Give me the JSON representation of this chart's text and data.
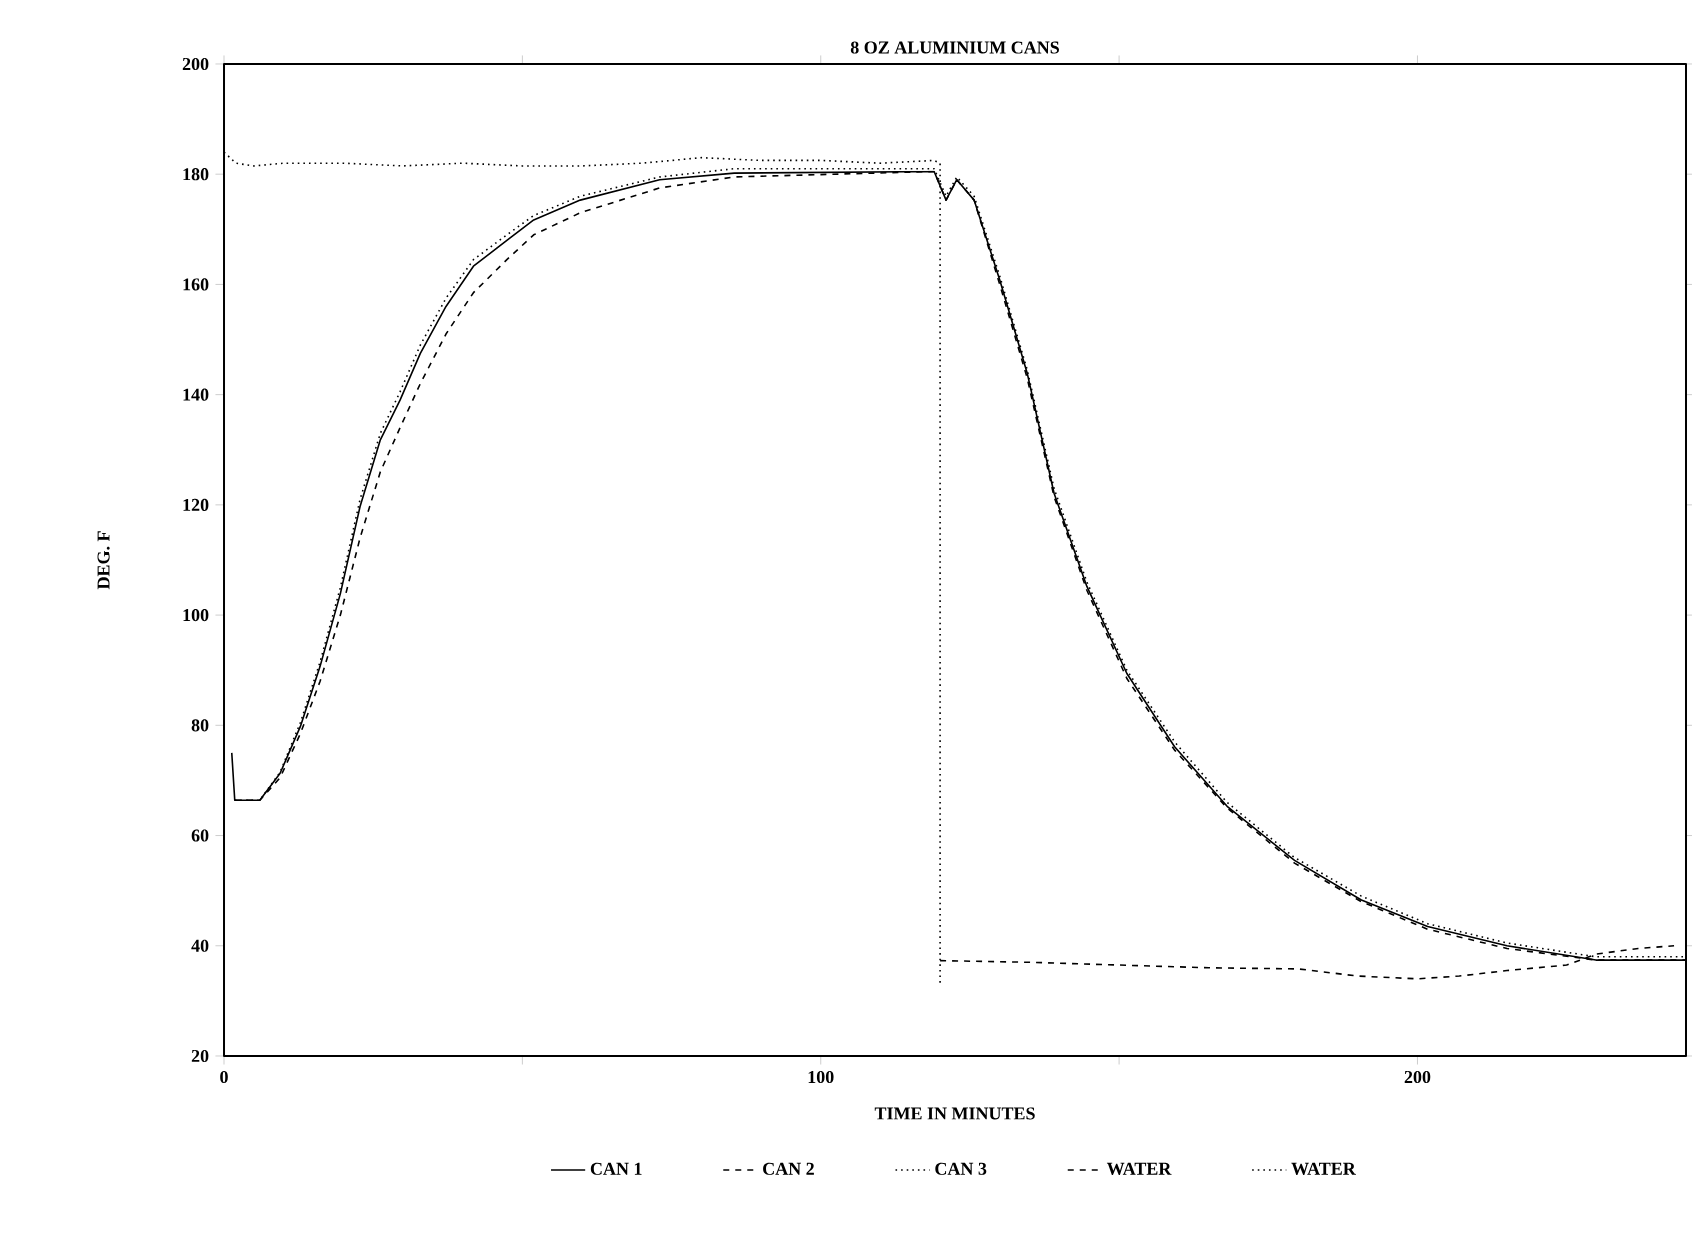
{
  "chart_data": {
    "type": "line",
    "title": "8 OZ ALUMINIUM CANS",
    "xlabel": "TIME IN MINUTES",
    "ylabel": "DEG. F",
    "xlim": [
      0,
      245
    ],
    "ylim": [
      20,
      200
    ],
    "xticks": [
      0,
      {
        "value": 50,
        "label": null
      },
      100,
      {
        "value": 150,
        "label": null
      },
      200
    ],
    "yticks": [
      20,
      40,
      60,
      80,
      100,
      120,
      140,
      160,
      180,
      200
    ],
    "legend": "bottom",
    "series": [
      {
        "name": "CAN 1",
        "color": "#000000",
        "line_style": "solid",
        "x": [
          1.3,
          1.8,
          6,
          9.4,
          12.8,
          16.1,
          19.5,
          22.8,
          26.2,
          29.5,
          32.9,
          37.2,
          41.8,
          47.4,
          51.9,
          59.7,
          73,
          85.5,
          119,
          121,
          122.8,
          125.7,
          130,
          134.6,
          139.1,
          144.6,
          151.3,
          159.3,
          168.1,
          179.4,
          190.6,
          201.7,
          215,
          229.9,
          245
        ],
        "values": [
          75,
          66.4,
          66.4,
          71.3,
          79.8,
          90.7,
          103.9,
          119.7,
          131.8,
          139,
          147.5,
          156,
          163.3,
          168,
          171.7,
          175.3,
          179,
          180.2,
          180.5,
          175.3,
          179,
          175.3,
          160.8,
          143.9,
          122.1,
          105.2,
          89.4,
          76.1,
          65.3,
          55.5,
          48.3,
          43.5,
          40,
          37.4,
          37.4
        ]
      },
      {
        "name": "CAN 2",
        "color": "#000000",
        "line_style": "dashed",
        "x": [
          1.8,
          6,
          9.4,
          12.8,
          16.1,
          19.5,
          22.8,
          26.2,
          29.5,
          32.9,
          37.2,
          41.8,
          47.4,
          51.9,
          59.7,
          73,
          85.5,
          119,
          121,
          122.8,
          125.7,
          130,
          134.6,
          139.1,
          144.6,
          151.3,
          159.3,
          168.1,
          179.4,
          190.6,
          201.7,
          215,
          229.9,
          245
        ],
        "values": [
          66.4,
          66.4,
          70.5,
          78.5,
          88,
          100,
          114,
          126,
          134,
          142,
          151,
          158.5,
          164.5,
          169,
          173,
          177.5,
          179.5,
          180.5,
          175.3,
          179,
          175.3,
          160,
          143,
          121.5,
          104.5,
          88.5,
          75.5,
          65,
          55,
          48,
          43,
          39.5,
          37.4,
          37.4
        ]
      },
      {
        "name": "CAN 3",
        "color": "#000000",
        "line_style": "dotted",
        "x": [
          1.8,
          6,
          9.4,
          12.8,
          16.1,
          19.5,
          22.8,
          26.2,
          29.5,
          32.9,
          37.2,
          41.8,
          47.4,
          51.9,
          59.7,
          73,
          85.5,
          119,
          121,
          122.8,
          125.7,
          130,
          134.6,
          139.1,
          144.6,
          151.3,
          159.3,
          168.1,
          179.4,
          190.6,
          201.7,
          215,
          229.9,
          245
        ],
        "values": [
          66.4,
          66.4,
          71.5,
          80.5,
          91.5,
          105,
          121,
          133,
          140.5,
          149,
          157.5,
          164.5,
          169,
          172.5,
          176,
          179.5,
          181,
          181,
          176,
          179.5,
          176,
          161.5,
          144.5,
          123,
          106,
          90,
          77,
          66,
          56,
          49,
          44,
          40.5,
          38,
          38
        ]
      },
      {
        "name": "WATER",
        "color": "#000000",
        "line_style": "dashed",
        "x": [
          120,
          135,
          150,
          165,
          180,
          190,
          200,
          207,
          215,
          225,
          230,
          237,
          243
        ],
        "values": [
          37.3,
          37,
          36.5,
          36,
          35.8,
          34.5,
          34,
          34.5,
          35.5,
          36.5,
          38.5,
          39.5,
          40
        ]
      },
      {
        "name": "WATER",
        "color": "#000000",
        "line_style": "dotted",
        "x": [
          0,
          2,
          5,
          10,
          20,
          30,
          40,
          50,
          60,
          70,
          80,
          90,
          100,
          110,
          119,
          120,
          120
        ],
        "values": [
          184,
          182,
          181.5,
          182,
          182,
          181.5,
          182,
          181.5,
          181.5,
          182,
          183,
          182.5,
          182.5,
          182,
          182.5,
          182,
          32.7
        ]
      }
    ]
  }
}
